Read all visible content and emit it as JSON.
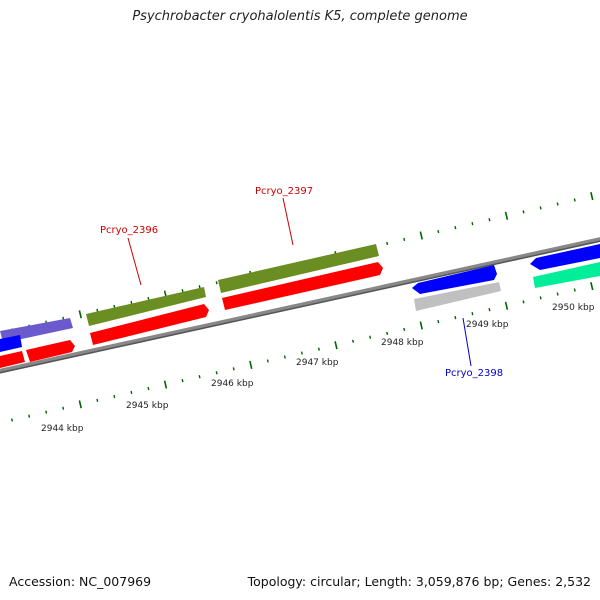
{
  "title": "Psychrobacter cryohalolentis K5, complete genome",
  "footer": {
    "accession": "Accession: NC_007969",
    "summary": "Topology: circular; Length: 3,059,876 bp; Genes: 2,532"
  },
  "scale_labels": [
    "2944 kbp",
    "2945 kbp",
    "2946 kbp",
    "2947 kbp",
    "2948 kbp",
    "2949 kbp",
    "2950 kbp"
  ],
  "gene_labels": [
    {
      "text": "Pcryo_2396",
      "color": "#cc0000"
    },
    {
      "text": "Pcryo_2397",
      "color": "#cc0000"
    },
    {
      "text": "Pcryo_2398",
      "color": "#0000cc"
    }
  ],
  "colors": {
    "backbone": "#808080",
    "cds_red": "#ff0000",
    "gene_olive": "#6b8e23",
    "gene_blue": "#0000ff",
    "gene_slate": "#6a5acd",
    "gene_gray": "#c0c0c0",
    "gene_mint": "#00ee99",
    "tick_green": "#006400"
  }
}
